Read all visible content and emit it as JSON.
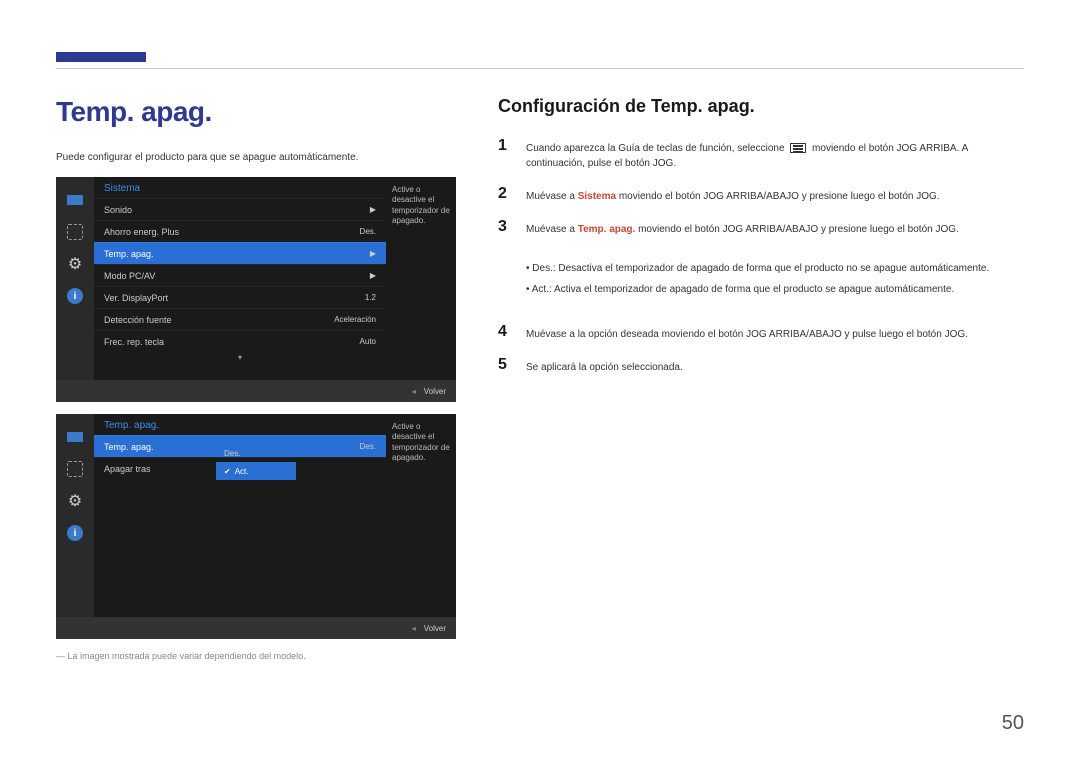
{
  "page_number": "50",
  "left": {
    "title": "Temp. apag.",
    "intro": "Puede configurar el producto para que se apague automáticamente.",
    "footnote": "― La imagen mostrada puede variar dependiendo del modelo."
  },
  "osd1": {
    "header": "Sistema",
    "rows": [
      {
        "label": "Sonido",
        "value": "▶"
      },
      {
        "label": "Ahorro energ. Plus",
        "value": "Des."
      },
      {
        "label": "Temp. apag.",
        "value": "▶",
        "selected": true
      },
      {
        "label": "Modo PC/AV",
        "value": "▶"
      },
      {
        "label": "Ver. DisplayPort",
        "value": "1.2"
      },
      {
        "label": "Detección fuente",
        "value": "Aceleración"
      },
      {
        "label": "Frec. rep. tecla",
        "value": "Auto"
      }
    ],
    "info": "Active o desactive el temporizador de apagado.",
    "footer_back": "Volver"
  },
  "osd2": {
    "header": "Temp. apag.",
    "rows": [
      {
        "label": "Temp. apag.",
        "value": "Des.",
        "selected": true
      },
      {
        "label": "Apagar tras",
        "value": ""
      }
    ],
    "submenu": [
      {
        "label": "Des."
      },
      {
        "label": "Act.",
        "selected": true
      }
    ],
    "info": "Active o desactive el temporizador de apagado.",
    "footer_back": "Volver"
  },
  "right": {
    "title": "Configuración de Temp. apag.",
    "steps": [
      {
        "n": "1",
        "pre": "Cuando aparezca la Guía de teclas de función, seleccione ",
        "post": " moviendo el botón JOG ARRIBA. A continuación, pulse el botón JOG.",
        "icon": true
      },
      {
        "n": "2",
        "pre": "Muévase a ",
        "hl": "Sistema",
        "hl_red": true,
        "post": " moviendo el botón JOG ARRIBA/ABAJO y presione luego el botón JOG."
      },
      {
        "n": "3",
        "pre": "Muévase a ",
        "hl": "Temp. apag.",
        "hl_red": true,
        "post": " moviendo el botón JOG ARRIBA/ABAJO y presione luego el botón JOG."
      },
      {
        "n": "4",
        "text": "Muévase a la opción deseada moviendo el botón JOG ARRIBA/ABAJO y pulse luego el botón JOG."
      },
      {
        "n": "5",
        "text": "Se aplicará la opción seleccionada."
      }
    ],
    "bullets": [
      {
        "hl": "Des.",
        "text": ": Desactiva el temporizador de apagado de forma que el producto no se apague automáticamente."
      },
      {
        "hl": "Act.",
        "text": ": Activa el temporizador de apagado de forma que el producto se apague automáticamente."
      }
    ]
  }
}
